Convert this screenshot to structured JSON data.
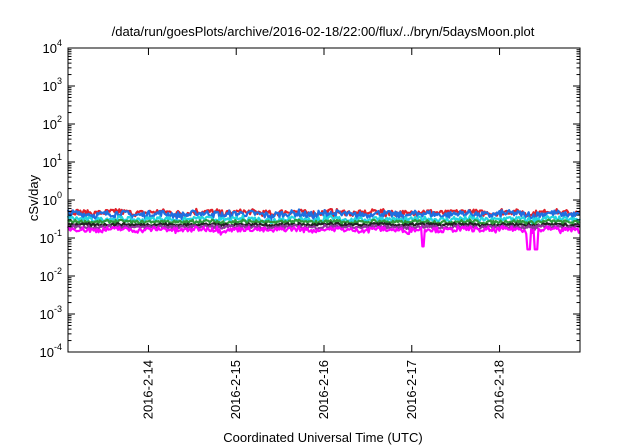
{
  "chart_data": {
    "type": "line",
    "title": "/data/run/goesPlots/archive/2016-02-18/22:00/flux/../bryn/5daysMoon.plot",
    "xlabel": "Coordinated Universal Time (UTC)",
    "ylabel": "cSv/day",
    "y_scale": "log",
    "ylim": [
      0.0001,
      10000
    ],
    "y_ticks": [
      {
        "base": "10",
        "exp": "-4"
      },
      {
        "base": "10",
        "exp": "-3"
      },
      {
        "base": "10",
        "exp": "-2"
      },
      {
        "base": "10",
        "exp": "-1"
      },
      {
        "base": "10",
        "exp": "0"
      },
      {
        "base": "10",
        "exp": "1"
      },
      {
        "base": "10",
        "exp": "2"
      },
      {
        "base": "10",
        "exp": "3"
      },
      {
        "base": "10",
        "exp": "4"
      }
    ],
    "x_tick_labels": [
      "2016-2-14",
      "2016-2-15",
      "2016-2-16",
      "2016-2-17",
      "2016-2-18"
    ],
    "xlim": [
      "2016-02-13 02:00",
      "2016-02-18 22:00"
    ],
    "x_ticks_at": [
      "2016-02-14 00:00",
      "2016-02-15 00:00",
      "2016-02-16 00:00",
      "2016-02-17 00:00",
      "2016-02-18 00:00"
    ],
    "grid": false,
    "legend": "none",
    "series": [
      {
        "color": "#e0202a",
        "level": 0.45,
        "noise": 0.18,
        "dips": []
      },
      {
        "color": "#1f6fe0",
        "level": 0.4,
        "noise": 0.22,
        "dips": []
      },
      {
        "color": "#22d6e0",
        "level": 0.3,
        "noise": 0.15,
        "dips": []
      },
      {
        "color": "#2e9a3a",
        "level": 0.26,
        "noise": 0.1,
        "dips": []
      },
      {
        "color": "#222222",
        "level": 0.22,
        "noise": 0.08,
        "dips": []
      },
      {
        "color": "#8c3a9a",
        "level": 0.19,
        "noise": 0.1,
        "dips": []
      },
      {
        "color": "#ff00ff",
        "level": 0.16,
        "noise": 0.15,
        "dips": [
          {
            "at": "2016-02-17 03:00",
            "value": 0.06
          },
          {
            "at": "2016-02-18 08:00",
            "value": 0.05
          },
          {
            "at": "2016-02-18 10:00",
            "value": 0.05
          }
        ]
      }
    ]
  }
}
